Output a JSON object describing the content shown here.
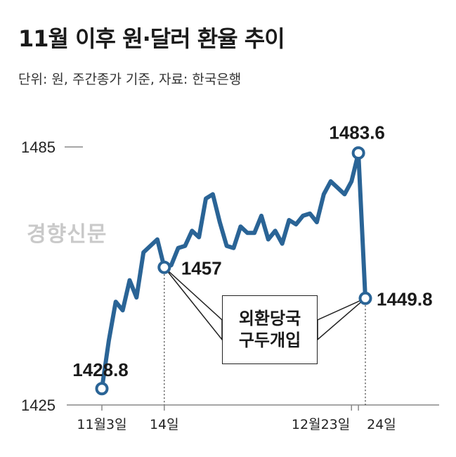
{
  "header": {
    "title": "11월 이후 원·달러 환율 추이",
    "subtitle": "단위: 원, 주간종가 기준, 자료: 한국은행"
  },
  "watermark": "경향신문",
  "callout": {
    "line1": "외환당국",
    "line2": "구두개입"
  },
  "colors": {
    "line": "#2a6496",
    "text": "#1a1a1a",
    "axis": "#888888",
    "watermark": "#c9c9c9"
  },
  "chart_data": {
    "type": "line",
    "title": "11월 이후 원·달러 환율 추이",
    "ylabel": "",
    "xlabel": "",
    "ylim": [
      1425,
      1485
    ],
    "y_ticks": [
      1425,
      1485
    ],
    "x_ticks": [
      {
        "index": 0,
        "label": "11월3일"
      },
      {
        "index": 9,
        "label": "14일"
      },
      {
        "index": 36,
        "label": "12월23일"
      },
      {
        "index": 37,
        "label": "24일"
      }
    ],
    "series": [
      {
        "name": "",
        "values": [
          1428.8,
          1440.0,
          1449.0,
          1447.0,
          1454.0,
          1450.0,
          1460.5,
          1462.0,
          1463.5,
          1457.0,
          1457.5,
          1461.5,
          1462.0,
          1465.5,
          1464.0,
          1473.0,
          1474.0,
          1467.5,
          1462.0,
          1461.5,
          1466.5,
          1465.0,
          1465.0,
          1469.0,
          1463.5,
          1465.5,
          1462.5,
          1468.0,
          1467.0,
          1469.0,
          1469.5,
          1467.5,
          1474.0,
          1477.0,
          1475.5,
          1474.0,
          1477.0,
          1483.6,
          1449.8
        ]
      }
    ],
    "annotations": [
      {
        "index": 0,
        "label": "1428.8"
      },
      {
        "index": 9,
        "label": "1457"
      },
      {
        "index": 37,
        "label": "1483.6"
      },
      {
        "index": 38,
        "label": "1449.8"
      }
    ],
    "callout_indices": [
      9,
      38
    ],
    "grid": false
  }
}
